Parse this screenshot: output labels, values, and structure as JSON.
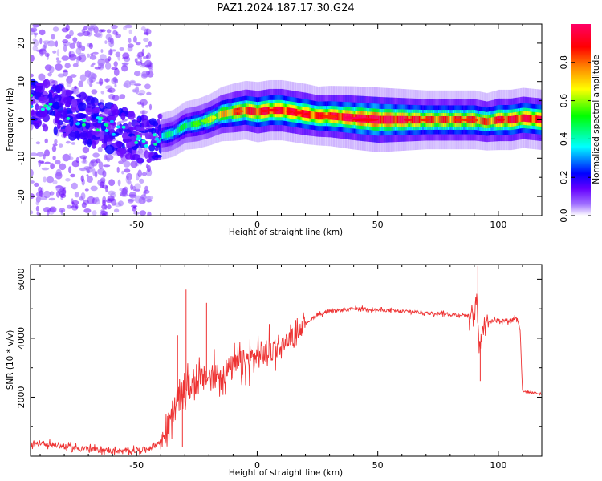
{
  "title": "PAZ1.2024.187.17.30.G24",
  "chart_data": [
    {
      "type": "heatmap",
      "xlabel": "Height of straight line (km)",
      "ylabel": "Frequency (Hz)",
      "xlim": [
        -94,
        118
      ],
      "ylim": [
        -25,
        25
      ],
      "xticks": [
        -50,
        0,
        50,
        100
      ],
      "yticks": [
        -20,
        -10,
        0,
        10,
        20
      ],
      "colorbar": {
        "label": "Normalized spectral amplitude",
        "range": [
          0,
          1
        ],
        "ticks": [
          0.0,
          0.2,
          0.4,
          0.6,
          0.8
        ],
        "tick_labels": [
          "0.0",
          "0.2",
          "0.4",
          "0.6",
          "0.8"
        ],
        "colormap": [
          "#ffffff",
          "#6600ff",
          "#0000ff",
          "#00ffff",
          "#00ff00",
          "#ffff00",
          "#ff8000",
          "#ff0000",
          "#ff0066"
        ]
      },
      "ridge": {
        "height_km": [
          -94,
          -85,
          -80,
          -75,
          -70,
          -65,
          -60,
          -55,
          -50,
          -45,
          -42,
          -38,
          -35,
          -30,
          -25,
          -20,
          -15,
          -10,
          -5,
          0,
          5,
          10,
          15,
          20,
          25,
          30,
          40,
          50,
          60,
          70,
          80,
          90,
          95,
          100,
          105,
          110,
          118
        ],
        "frequency_hz": [
          4.5,
          3.5,
          2,
          1,
          0,
          -1.5,
          -2.5,
          -3.5,
          -4.5,
          -5,
          -4.5,
          -4,
          -3.5,
          -1.5,
          -1,
          0,
          1.5,
          2,
          2.5,
          2,
          2.5,
          2.5,
          2,
          1.5,
          1,
          1,
          0.5,
          0,
          0,
          0,
          0,
          0,
          -0.5,
          0,
          0,
          0.5,
          0
        ],
        "amplitude": [
          0.2,
          0.2,
          0.2,
          0.15,
          0.15,
          0.15,
          0.15,
          0.15,
          0.2,
          0.2,
          0.35,
          0.4,
          0.4,
          0.45,
          0.5,
          0.55,
          0.65,
          0.75,
          0.8,
          0.85,
          0.85,
          0.85,
          0.85,
          0.85,
          0.8,
          0.85,
          0.95,
          1.0,
          0.9,
          0.8,
          0.8,
          0.8,
          0.75,
          0.85,
          0.85,
          0.85,
          0.85
        ]
      }
    },
    {
      "type": "line",
      "xlabel": "Height of straight line (km)",
      "ylabel": "SNR (10 * v/v)",
      "xlim": [
        -94,
        118
      ],
      "ylim": [
        0,
        6500
      ],
      "xticks": [
        -50,
        0,
        50,
        100
      ],
      "yticks": [
        2000,
        4000,
        6000
      ],
      "color": "#ee3333",
      "series": [
        {
          "x": [
            -94,
            -90,
            -85,
            -80,
            -75,
            -70,
            -65,
            -60,
            -55,
            -50,
            -45,
            -40,
            -37,
            -35,
            -32,
            -30,
            -28,
            -25,
            -20,
            -15,
            -10,
            -5,
            0,
            5,
            10,
            15,
            20,
            25,
            30,
            35,
            40,
            45,
            50,
            55,
            60,
            65,
            70,
            75,
            80,
            85,
            88,
            90,
            91,
            92,
            93,
            95,
            100,
            105,
            107,
            108,
            109,
            110,
            115,
            118
          ],
          "y": [
            300,
            450,
            400,
            320,
            280,
            250,
            200,
            180,
            170,
            200,
            250,
            500,
            1000,
            1500,
            2000,
            2200,
            2400,
            2500,
            2700,
            2800,
            3000,
            3200,
            3400,
            3600,
            3800,
            4100,
            4500,
            4800,
            4900,
            4950,
            5000,
            5000,
            4950,
            4950,
            4900,
            4900,
            4850,
            4850,
            4800,
            4800,
            4750,
            4700,
            5500,
            3500,
            4300,
            4600,
            4600,
            4600,
            4700,
            4650,
            4300,
            2200,
            2150,
            2100
          ],
          "spikes": [
            {
              "x": -29.5,
              "y": 5650
            },
            {
              "x": -31,
              "y": 300
            },
            {
              "x": 91.5,
              "y": 6450
            },
            {
              "x": 92.5,
              "y": 2550
            },
            {
              "x": -33,
              "y": 4100
            },
            {
              "x": -21,
              "y": 5200
            }
          ]
        }
      ]
    }
  ]
}
